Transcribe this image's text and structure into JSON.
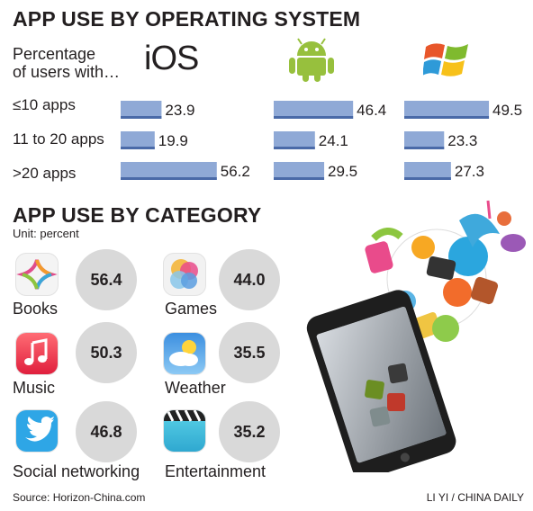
{
  "os_section": {
    "title": "APP USE BY OPERATING SYSTEM",
    "subtitle_line1": "Percentage",
    "subtitle_line2": "of users with…",
    "ios_label": "iOS"
  },
  "category_section": {
    "title": "APP USE BY CATEGORY",
    "unit": "Unit: percent"
  },
  "footer": {
    "source": "Source: Horizon-China.com",
    "credit": "LI YI / CHINA DAILY"
  },
  "colors": {
    "bar_fill": "#8fa9d6",
    "bar_edge": "#4a6aa8",
    "circle": "#d9d9d9"
  },
  "chart_data": [
    {
      "type": "bar",
      "title": "APP USE BY OPERATING SYSTEM",
      "categories": [
        "≤10 apps",
        "11 to 20 apps",
        ">20 apps"
      ],
      "series": [
        {
          "name": "iOS",
          "values": [
            23.9,
            19.9,
            56.2
          ]
        },
        {
          "name": "Android",
          "values": [
            46.4,
            24.1,
            29.5
          ]
        },
        {
          "name": "Windows",
          "values": [
            49.5,
            23.3,
            27.3
          ]
        }
      ],
      "value_labels": [
        [
          "23.9",
          "19.9",
          "56.2"
        ],
        [
          "46.4",
          "24.1",
          "29.5"
        ],
        [
          "49.5",
          "23.3",
          "27.3"
        ]
      ],
      "icons": [
        "ios-wordmark",
        "android-robot-icon",
        "windows-flag-icon"
      ]
    },
    {
      "type": "table",
      "title": "APP USE BY CATEGORY",
      "unit": "Unit: percent",
      "categories": [
        {
          "label": "Books",
          "value": "56.4",
          "icon": "books-icon"
        },
        {
          "label": "Games",
          "value": "44.0",
          "icon": "game-center-icon"
        },
        {
          "label": "Music",
          "value": "50.3",
          "icon": "music-note-icon"
        },
        {
          "label": "Weather",
          "value": "35.5",
          "icon": "weather-cloud-sun-icon"
        },
        {
          "label": "Social networking",
          "value": "46.8",
          "icon": "twitter-bird-icon"
        },
        {
          "label": "Entertainment",
          "value": "35.2",
          "icon": "clapperboard-icon"
        }
      ]
    }
  ]
}
